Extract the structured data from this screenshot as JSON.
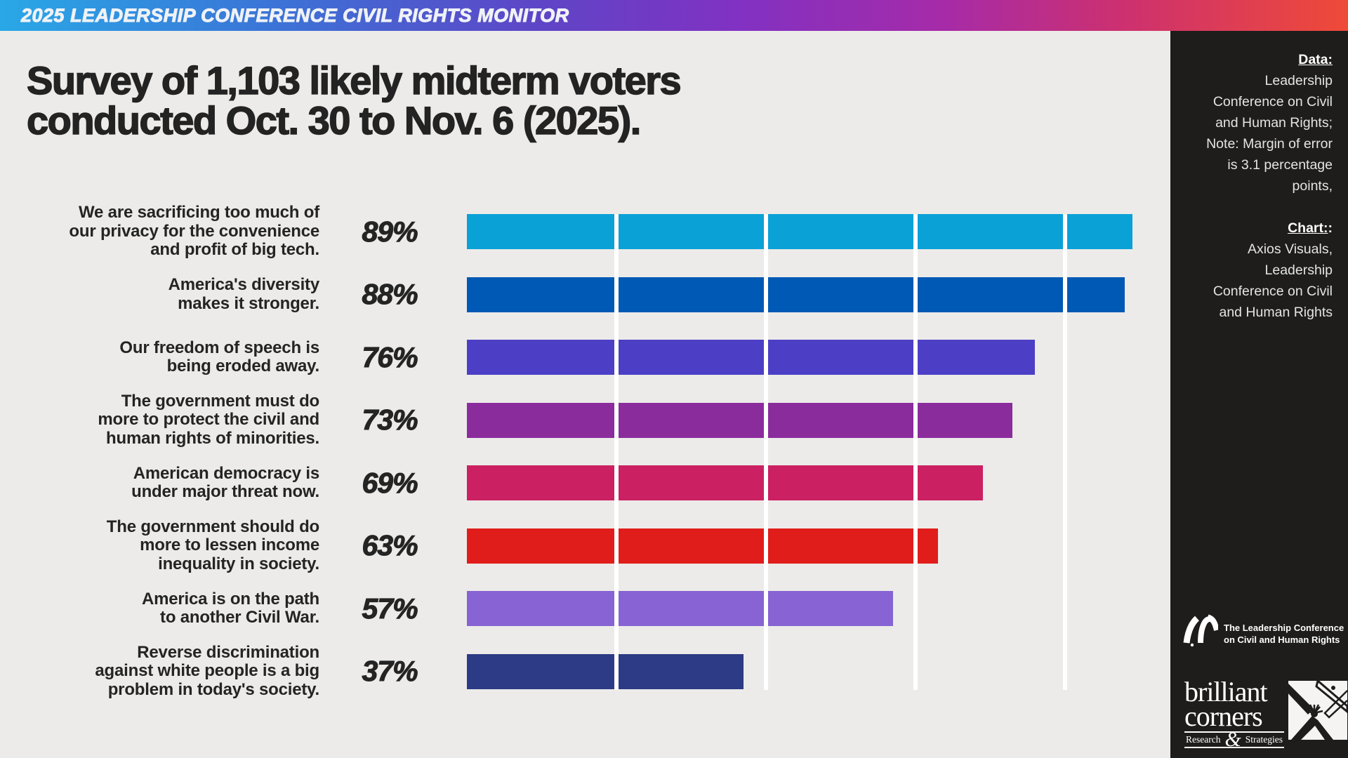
{
  "banner": {
    "title": "2025 LEADERSHIP CONFERENCE CIVIL RIGHTS MONITOR"
  },
  "page_title": "Survey of 1,103 likely midterm voters\nconducted Oct. 30 to Nov. 6 (2025).",
  "chart_data": {
    "type": "bar",
    "orientation": "horizontal",
    "value_unit": "%",
    "xlim": [
      0,
      100
    ],
    "gridlines": [
      20,
      40,
      60,
      80
    ],
    "grid_color": "#FFFFFF",
    "background_color": "#ECEBE9",
    "categories": [
      "We are sacrificing too much of\nour privacy for the convenience\nand profit of big tech.",
      "America's diversity\nmakes it stronger.",
      "Our freedom of speech is\nbeing eroded away.",
      "The government must do\nmore to protect the civil and\nhuman rights of minorities.",
      "American democracy is\nunder major threat now.",
      "The government should do\nmore to lessen income\ninequality in society.",
      "America is on the path\nto another Civil War.",
      "Reverse discrimination\nagainst white people is a big\nproblem in today's society."
    ],
    "values": [
      89,
      88,
      76,
      73,
      69,
      63,
      57,
      37
    ],
    "value_labels": [
      "89%",
      "88%",
      "76%",
      "73%",
      "69%",
      "63%",
      "57%",
      "37%"
    ],
    "bar_colors": [
      "#0AA1D7",
      "#0059B4",
      "#4C3FC6",
      "#8B2C9D",
      "#CB2062",
      "#E11D1B",
      "#8763D4",
      "#2D3A85"
    ]
  },
  "sidebar": {
    "data_heading": "Data:",
    "data_text": "Leadership\nConference on Civil\nand Human Rights;\nNote: Margin of error\nis 3.1 percentage\npoints,",
    "chart_heading": "Chart:",
    "chart_heading_suffix": ":",
    "chart_text": "Axios Visuals,\nLeadership\nConference on Civil\nand Human Rights",
    "lc_logo_text": "The Leadership Conference\non Civil and Human Rights",
    "bc_logo": {
      "word1": "brilliant",
      "word2": "corners",
      "sub_left": "Research",
      "amp": "&",
      "sub_right": "Strategies"
    }
  }
}
